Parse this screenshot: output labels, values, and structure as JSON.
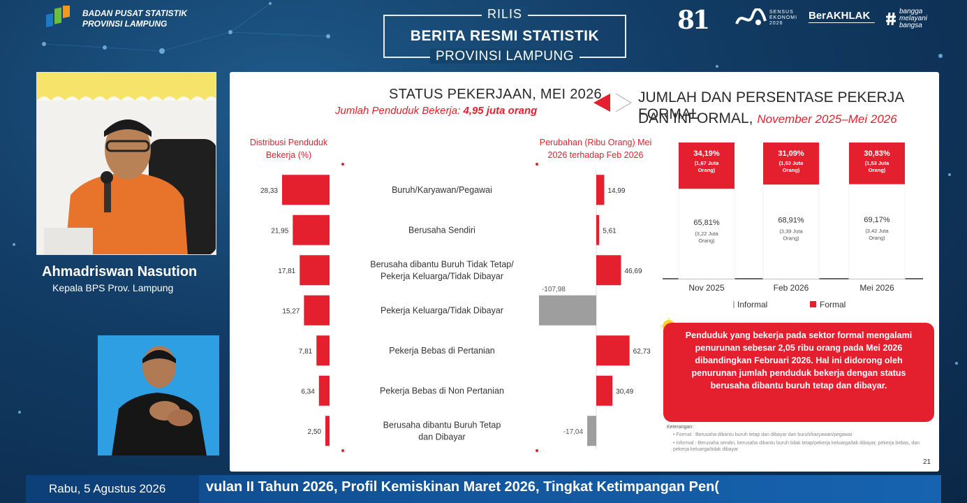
{
  "header": {
    "org_line1": "BADAN PUSAT STATISTIK",
    "org_line2": "PROVINSI LAMPUNG",
    "rilis": "RILIS",
    "main_title": "BERITA RESMI STATISTIK",
    "sub_title": "PROVINSI LAMPUNG",
    "logo_81": "81",
    "logo_se": "SENSUS\nEKONOMI\n2026",
    "logo_berakhlak": "BerAKHLAK",
    "logo_bangga": "bangga\nmelayani\nbangsa"
  },
  "speaker": {
    "name": "Ahmadriswan Nasution",
    "role": "Kepala BPS Prov. Lampung"
  },
  "slide": {
    "title": "STATUS PEKERJAAN, MEI 2026",
    "subtitle_prefix": "Jumlah Penduduk Bekerja: ",
    "subtitle_value": "4,95 juta orang",
    "right_title_line1": "JUMLAH DAN PERSENTASE PEKERJA FORMAL",
    "right_title_line2": "DAN INFORMAL, ",
    "right_title_period": "November 2025–Mei 2026",
    "dist_label": "Distribusi Penduduk Bekerja (%)",
    "change_label": "Perubahan (Ribu Orang) Mei 2026 terhadap Feb 2026",
    "callout": "Penduduk yang bekerja pada sektor formal mengalami penurunan sebesar 2,05 ribu orang pada Mei 2026 dibandingkan Februari 2026. Hal ini didorong oleh penurunan jumlah penduduk bekerja dengan status berusaha dibantu buruh tetap dan dibayar.",
    "notes_title": "Keterangan:",
    "note_formal": "• Formal   : Berusaha dibantu buruh tetap dan dibayar dan buruh/karyawan/pegawai",
    "note_informal": "• Informal : Berusaha sendiri, berusaha dibantu buruh tidak tetap/pekerja keluarga/tak dibayar, pekerja bebas, dan pekerja keluarga/tidak dibayar",
    "page": "21"
  },
  "chart_data": [
    {
      "type": "bar",
      "title": "Distribusi Penduduk Bekerja (%)",
      "categories": [
        "Buruh/Karyawan/Pegawai",
        "Berusaha Sendiri",
        "Berusaha dibantu Buruh Tidak Tetap/ Pekerja Keluarga/Tidak Dibayar",
        "Pekerja Keluarga/Tidak Dibayar",
        "Pekerja Bebas di Pertanian",
        "Pekerja Bebas di Non Pertanian",
        "Berusaha dibantu Buruh Tetap dan Dibayar"
      ],
      "category_lines": [
        [
          "Buruh/Karyawan/Pegawai"
        ],
        [
          "Berusaha Sendiri"
        ],
        [
          "Berusaha dibantu Buruh Tidak Tetap/",
          "Pekerja Keluarga/Tidak Dibayar"
        ],
        [
          "Pekerja Keluarga/Tidak Dibayar"
        ],
        [
          "Pekerja Bebas di Pertanian"
        ],
        [
          "Pekerja Bebas di Non Pertanian"
        ],
        [
          "Berusaha dibantu Buruh Tetap",
          "dan Dibayar"
        ]
      ],
      "values": [
        28.33,
        21.95,
        17.81,
        15.27,
        7.81,
        6.34,
        2.5
      ],
      "value_labels": [
        "28,33",
        "21,95",
        "17,81",
        "15,27",
        "7,81",
        "6,34",
        "2,50"
      ],
      "orientation": "horizontal-left",
      "color": "#e5202e"
    },
    {
      "type": "bar",
      "title": "Perubahan (Ribu Orang) Mei 2026 terhadap Feb 2026",
      "categories": [
        "Buruh/Karyawan/Pegawai",
        "Berusaha Sendiri",
        "Berusaha dibantu Buruh Tidak Tetap/ Pekerja Keluarga/Tidak Dibayar",
        "Pekerja Keluarga/Tidak Dibayar",
        "Pekerja Bebas di Pertanian",
        "Pekerja Bebas di Non Pertanian",
        "Berusaha dibantu Buruh Tetap dan Dibayar"
      ],
      "values": [
        14.99,
        5.61,
        46.69,
        -107.98,
        62.73,
        30.49,
        -17.04
      ],
      "value_labels": [
        "14,99",
        "5,61",
        "46,69",
        "-107,98",
        "62,73",
        "30,49",
        "-17,04"
      ],
      "positive_color": "#e5202e",
      "negative_color": "#9e9e9e"
    },
    {
      "type": "bar",
      "stacked": true,
      "categories": [
        "Nov 2025",
        "Feb 2026",
        "Mei 2026"
      ],
      "series": [
        {
          "name": "Formal",
          "values": [
            34.19,
            31.09,
            30.83
          ],
          "labels": [
            "34,19%",
            "31,09%",
            "30,83%"
          ],
          "sublabels": [
            "(1,67 Juta Orang)",
            "(1,53 Juta Orang)",
            "(1,53 Juta Orang)"
          ],
          "color": "#e5202e"
        },
        {
          "name": "Informal",
          "values": [
            65.81,
            68.91,
            69.17
          ],
          "labels": [
            "65,81%",
            "68,91%",
            "69,17%"
          ],
          "sublabels": [
            "(3,22 Juta Orang)",
            "(3,39 Juta Orang)",
            "(3,42 Juta Orang)"
          ],
          "color": "#ffffff"
        }
      ],
      "legend": [
        "Informal",
        "Formal"
      ],
      "legend_placement": "bottom"
    }
  ],
  "ticker": {
    "date": "Rabu, 5 Agustus 2026",
    "text": "vulan II Tahun 2026, Profil Kemiskinan Maret 2026, Tingkat Ketimpangan Pen("
  }
}
